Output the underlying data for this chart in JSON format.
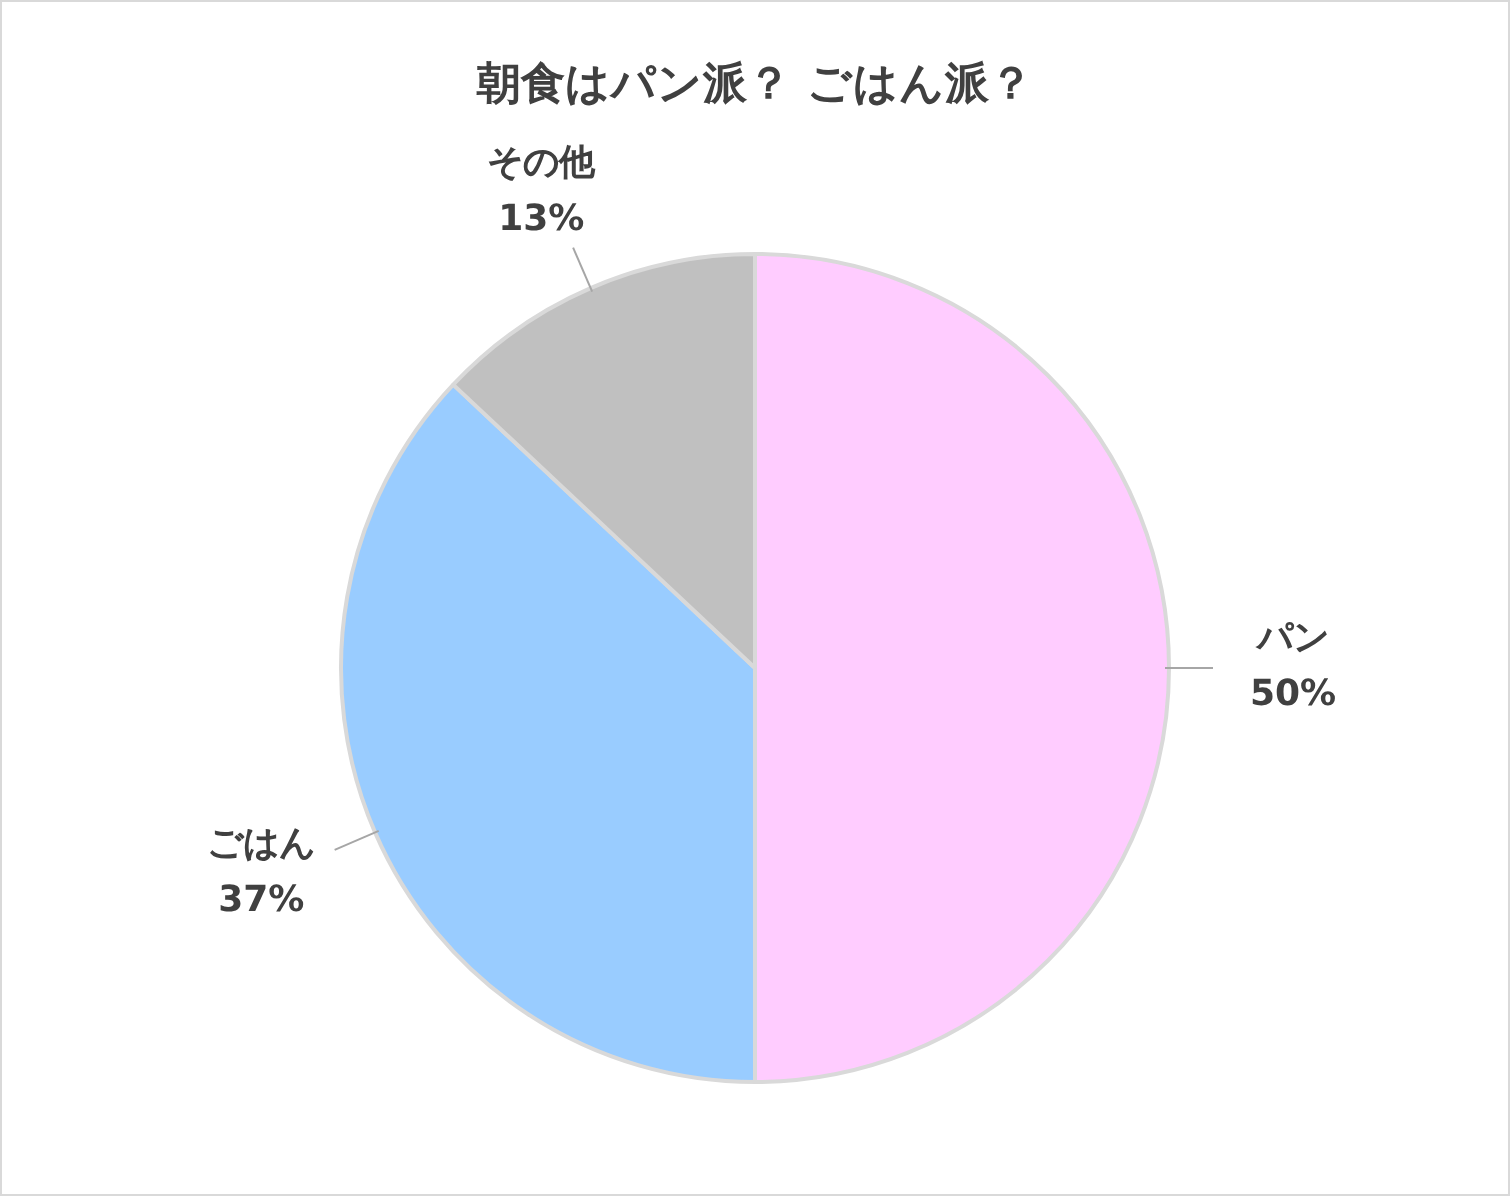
{
  "chart_data": {
    "type": "pie",
    "title": "朝食はパン派？ ごはん派？",
    "categories": [
      "パン",
      "ごはん",
      "その他"
    ],
    "values": [
      50,
      37,
      13
    ],
    "value_labels": [
      "50%",
      "37%",
      "13%"
    ],
    "colors": [
      "#ffccff",
      "#99ccff",
      "#c0c0c0"
    ],
    "legend": false
  }
}
